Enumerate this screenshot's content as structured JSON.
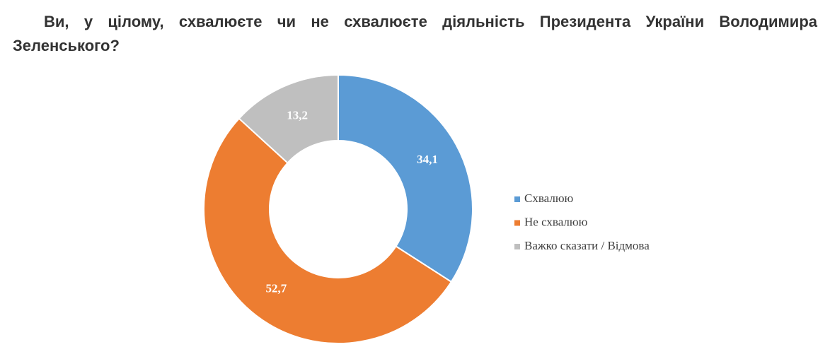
{
  "chart_data": {
    "type": "donut",
    "title": "Ви, у цілому, схвалюєте чи не схвалюєте діяльність Президента України Володимира Зеленського?",
    "categories": [
      "Схвалюю",
      "Не схвалюю",
      "Важко сказати / Відмова"
    ],
    "values": [
      34.1,
      52.7,
      13.2
    ],
    "value_labels": [
      "34,1",
      "52,7",
      "13,2"
    ],
    "colors": [
      "#5b9bd5",
      "#ed7d31",
      "#bfbfbf"
    ],
    "legend": "right"
  }
}
